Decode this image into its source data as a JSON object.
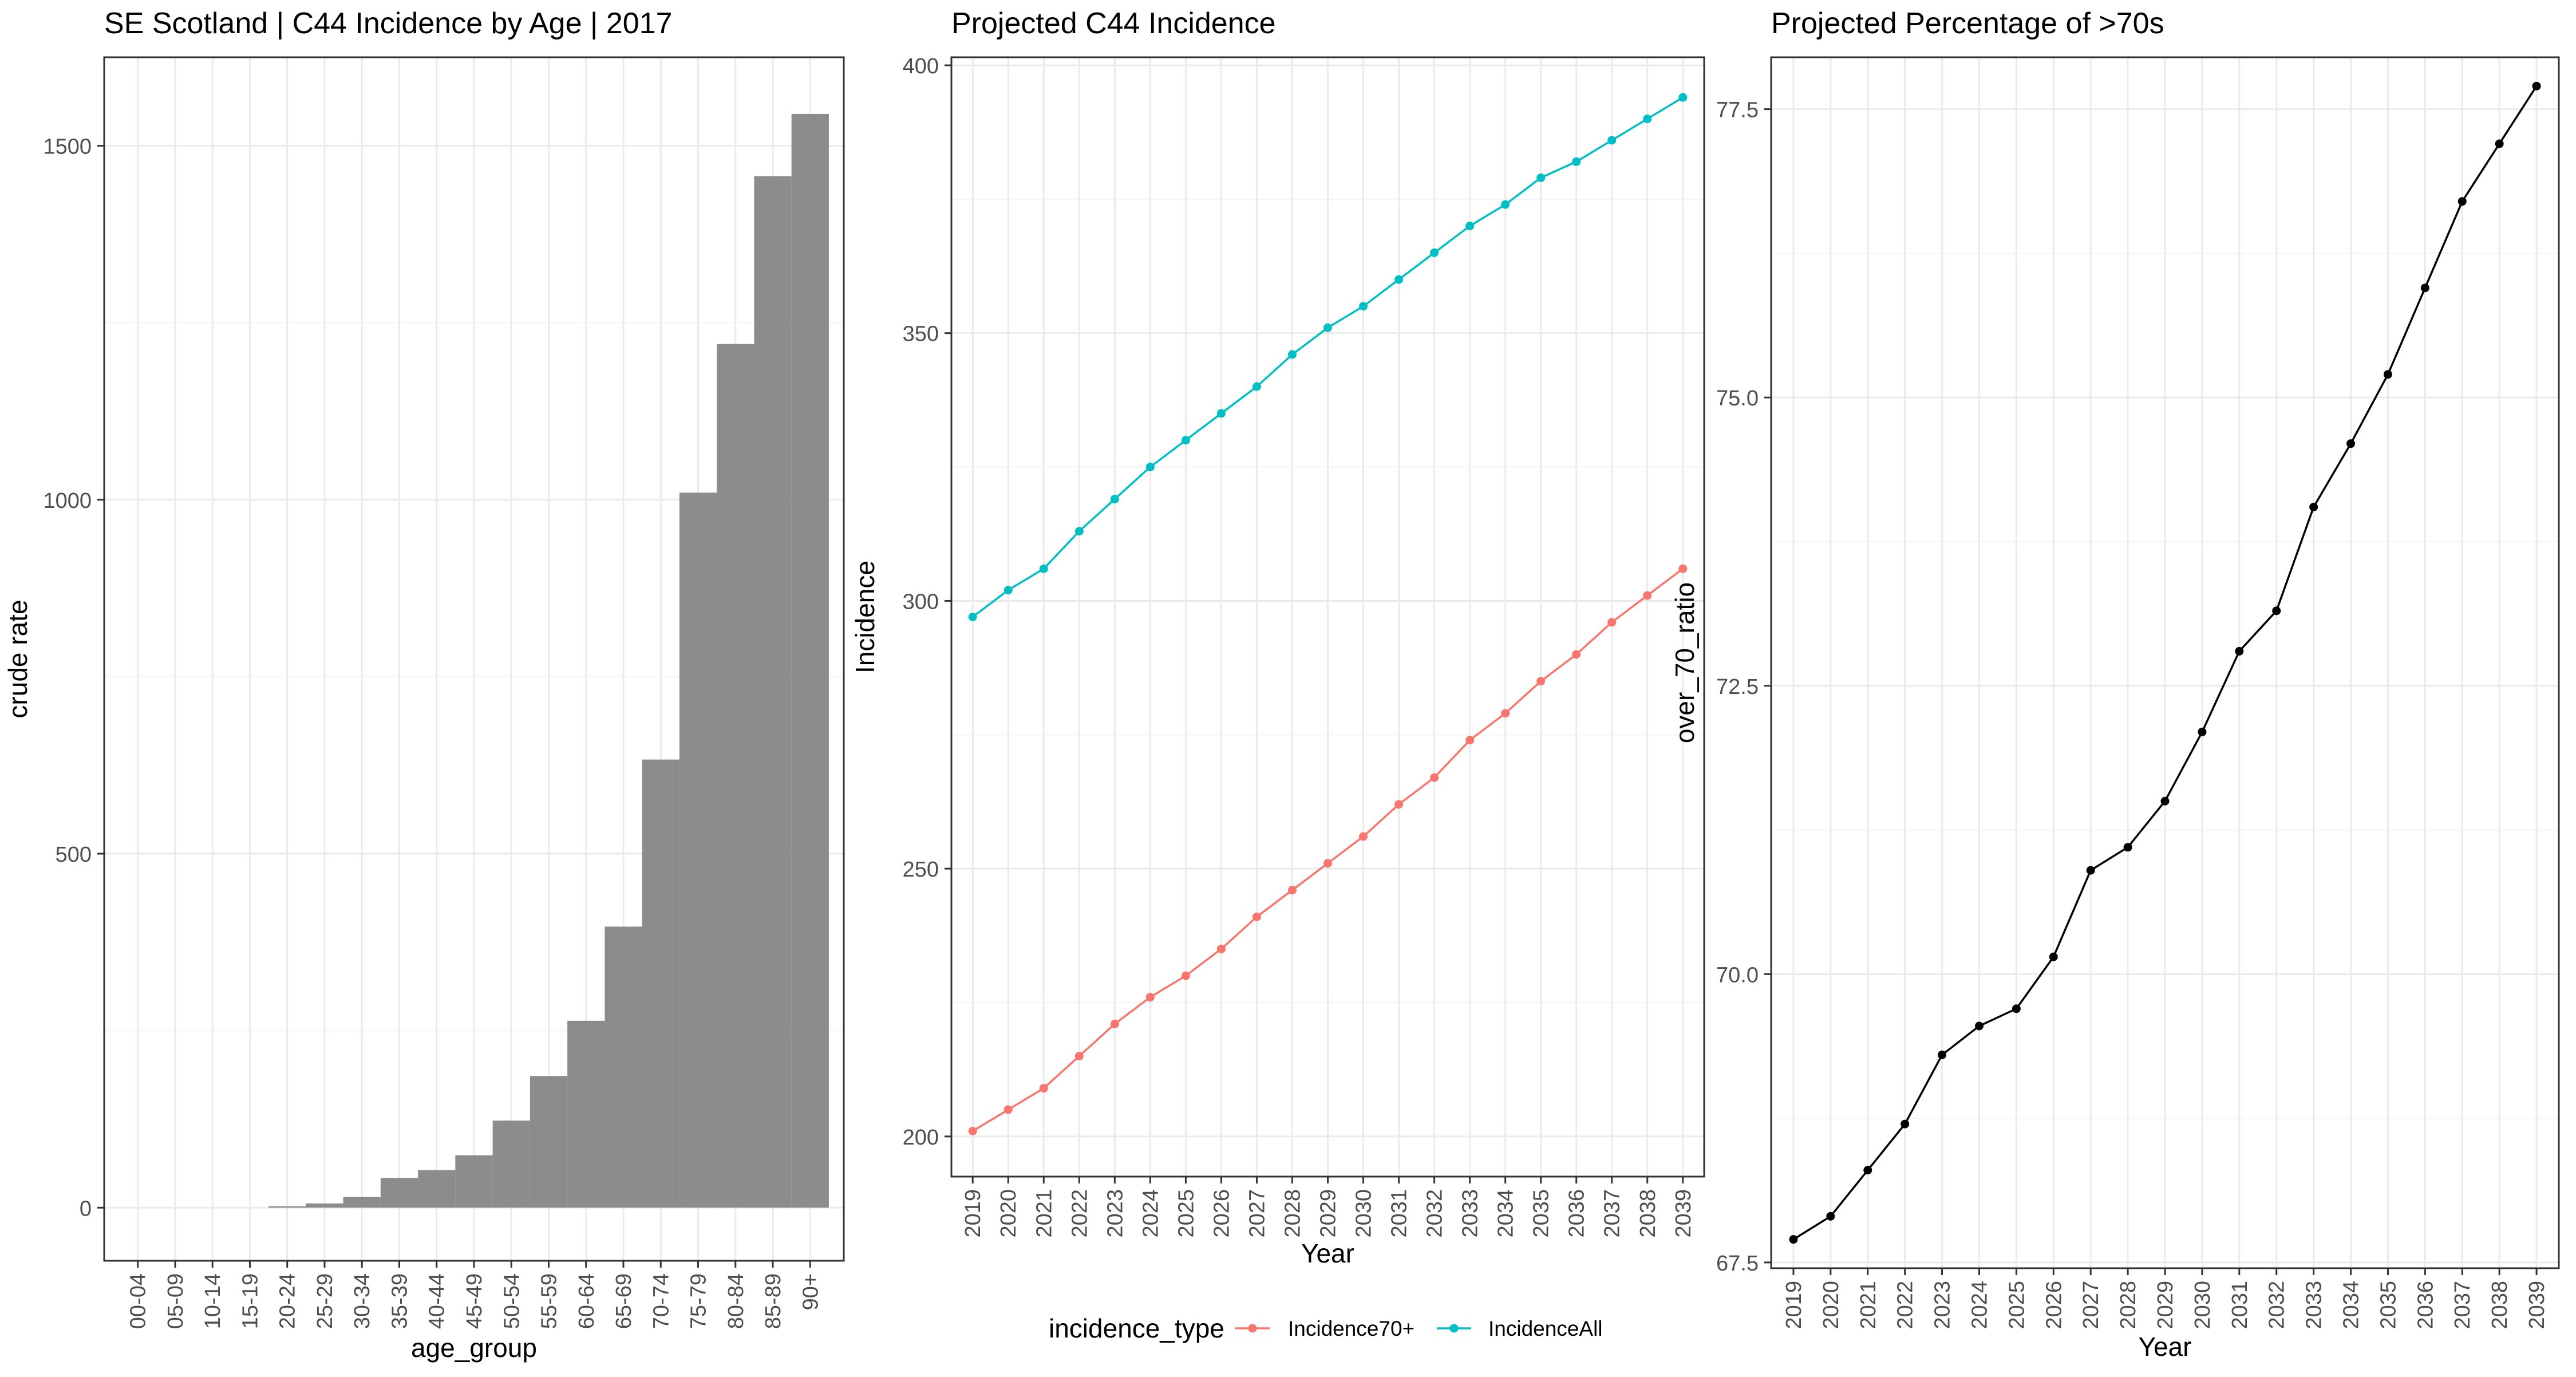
{
  "chart_data": [
    {
      "type": "bar",
      "title": "SE Scotland | C44 Incidence by Age | 2017",
      "xlabel": "age_group",
      "ylabel": "crude rate",
      "categories": [
        "00-04",
        "05-09",
        "10-14",
        "15-19",
        "20-24",
        "25-29",
        "30-34",
        "35-39",
        "40-44",
        "45-49",
        "50-54",
        "55-59",
        "60-64",
        "65-69",
        "70-74",
        "75-79",
        "80-84",
        "85-89",
        "90+"
      ],
      "values": [
        0,
        0,
        0,
        0,
        2,
        6,
        15,
        42,
        53,
        74,
        123,
        186,
        264,
        397,
        633,
        1010,
        1220,
        1457,
        1545
      ],
      "ylim": [
        -75,
        1625
      ],
      "yticks": [
        0,
        500,
        1000,
        1500
      ],
      "grid": true,
      "colors": {
        "bar": "#8c8c8c"
      }
    },
    {
      "type": "line",
      "title": "Projected C44 Incidence",
      "xlabel": "Year",
      "ylabel": "Incidence",
      "x": [
        "2019",
        "2020",
        "2021",
        "2022",
        "2023",
        "2024",
        "2025",
        "2026",
        "2027",
        "2028",
        "2029",
        "2030",
        "2031",
        "2032",
        "2033",
        "2034",
        "2035",
        "2036",
        "2037",
        "2038",
        "2039"
      ],
      "series": [
        {
          "name": "Incidence70+",
          "color": "#f8766d",
          "values": [
            201,
            205,
            209,
            215,
            221,
            226,
            230,
            235,
            241,
            246,
            251,
            256,
            262,
            267,
            274,
            279,
            285,
            290,
            296,
            301,
            306
          ]
        },
        {
          "name": "IncidenceAll",
          "color": "#00bfc4",
          "values": [
            297,
            302,
            306,
            313,
            319,
            325,
            330,
            335,
            340,
            346,
            351,
            355,
            360,
            365,
            370,
            374,
            379,
            382,
            386,
            390,
            394
          ]
        }
      ],
      "ylim": [
        192.5,
        401.5
      ],
      "yticks": [
        200,
        250,
        300,
        350,
        400
      ],
      "grid": true,
      "legend": {
        "title": "incidence_type",
        "position": "bottom"
      }
    },
    {
      "type": "line",
      "title": "Projected Percentage of >70s",
      "xlabel": "Year",
      "ylabel": "over_70_ratio",
      "x": [
        "2019",
        "2020",
        "2021",
        "2022",
        "2023",
        "2024",
        "2025",
        "2026",
        "2027",
        "2028",
        "2029",
        "2030",
        "2031",
        "2032",
        "2033",
        "2034",
        "2035",
        "2036",
        "2037",
        "2038",
        "2039"
      ],
      "series": [
        {
          "values": [
            67.7,
            67.9,
            68.3,
            68.7,
            69.3,
            69.55,
            69.7,
            70.15,
            70.9,
            71.1,
            71.5,
            72.1,
            72.8,
            73.15,
            74.05,
            74.6,
            75.2,
            75.95,
            76.7,
            77.2,
            77.7
          ],
          "color": "#000000"
        }
      ],
      "ylim": [
        67.45,
        77.95
      ],
      "yticks": [
        67.5,
        70.0,
        72.5,
        75.0,
        77.5
      ],
      "grid": true
    }
  ]
}
